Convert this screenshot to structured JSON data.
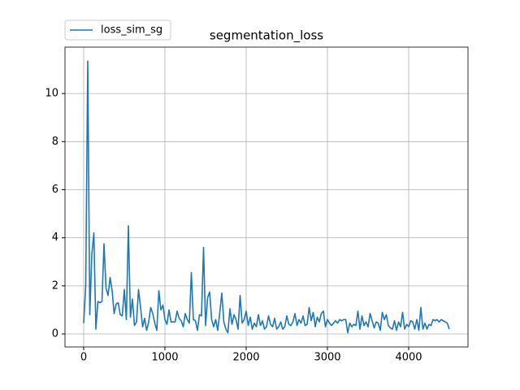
{
  "chart_data": {
    "type": "line",
    "title": "segmentation_loss",
    "x": [
      0,
      25,
      50,
      75,
      100,
      125,
      150,
      175,
      200,
      225,
      250,
      275,
      300,
      325,
      350,
      375,
      400,
      425,
      450,
      475,
      500,
      525,
      550,
      575,
      600,
      625,
      650,
      675,
      700,
      725,
      750,
      775,
      800,
      825,
      850,
      875,
      900,
      925,
      950,
      975,
      1000,
      1025,
      1050,
      1075,
      1100,
      1125,
      1150,
      1175,
      1200,
      1225,
      1250,
      1275,
      1300,
      1325,
      1350,
      1375,
      1400,
      1425,
      1450,
      1475,
      1500,
      1525,
      1550,
      1575,
      1600,
      1625,
      1650,
      1675,
      1700,
      1725,
      1750,
      1775,
      1800,
      1825,
      1850,
      1875,
      1900,
      1925,
      1950,
      1975,
      2000,
      2025,
      2050,
      2075,
      2100,
      2125,
      2150,
      2175,
      2200,
      2225,
      2250,
      2275,
      2300,
      2325,
      2350,
      2375,
      2400,
      2425,
      2450,
      2475,
      2500,
      2525,
      2550,
      2575,
      2600,
      2625,
      2650,
      2675,
      2700,
      2725,
      2750,
      2775,
      2800,
      2825,
      2850,
      2875,
      2900,
      2925,
      2950,
      2975,
      3000,
      3025,
      3050,
      3075,
      3100,
      3125,
      3150,
      3175,
      3200,
      3225,
      3250,
      3275,
      3300,
      3325,
      3350,
      3375,
      3400,
      3425,
      3450,
      3475,
      3500,
      3525,
      3550,
      3575,
      3600,
      3625,
      3650,
      3675,
      3700,
      3725,
      3750,
      3775,
      3800,
      3825,
      3850,
      3875,
      3900,
      3925,
      3950,
      3975,
      4000,
      4025,
      4050,
      4075,
      4100,
      4125,
      4150,
      4175,
      4200,
      4225,
      4250,
      4275,
      4300,
      4325,
      4350,
      4375,
      4400,
      4425,
      4450,
      4475,
      4500
    ],
    "series": [
      {
        "name": "loss_sim_sg",
        "color": "#1f77b4",
        "values": [
          0.45,
          2.0,
          11.35,
          0.8,
          3.3,
          4.2,
          0.2,
          1.35,
          1.3,
          1.35,
          3.75,
          1.9,
          1.6,
          2.35,
          1.8,
          0.85,
          1.25,
          1.3,
          0.8,
          0.75,
          1.85,
          0.6,
          4.5,
          0.7,
          1.45,
          0.35,
          0.5,
          1.85,
          1.1,
          0.3,
          0.65,
          0.15,
          0.5,
          1.1,
          0.85,
          0.45,
          0.15,
          1.8,
          1.0,
          1.2,
          0.6,
          0.4,
          1.0,
          0.5,
          0.5,
          0.5,
          0.95,
          0.65,
          0.55,
          0.3,
          0.85,
          0.6,
          0.45,
          2.55,
          0.6,
          0.55,
          0.15,
          0.8,
          0.75,
          3.6,
          0.35,
          1.5,
          1.75,
          0.6,
          0.3,
          0.6,
          0.15,
          0.9,
          1.7,
          0.5,
          0.2,
          0.05,
          1.05,
          0.4,
          0.8,
          0.6,
          0.2,
          1.6,
          0.45,
          0.6,
          0.95,
          0.35,
          0.7,
          0.2,
          0.45,
          0.3,
          0.8,
          0.35,
          0.55,
          0.2,
          0.3,
          0.75,
          0.4,
          0.3,
          0.65,
          0.2,
          0.3,
          0.5,
          0.2,
          0.3,
          0.75,
          0.4,
          0.35,
          0.5,
          0.85,
          0.35,
          0.6,
          0.45,
          0.75,
          0.35,
          0.4,
          1.1,
          0.55,
          0.9,
          0.3,
          0.7,
          0.5,
          0.85,
          0.95,
          0.3,
          0.6,
          0.45,
          0.35,
          0.45,
          0.55,
          0.45,
          0.6,
          0.55,
          0.6,
          0.6,
          0.05,
          0.45,
          0.3,
          0.4,
          0.35,
          0.95,
          0.2,
          0.75,
          0.35,
          0.5,
          0.3,
          0.85,
          0.55,
          0.25,
          0.5,
          0.45,
          0.15,
          0.9,
          0.6,
          0.8,
          0.35,
          0.25,
          0.2,
          0.55,
          0.15,
          0.5,
          0.3,
          0.9,
          0.2,
          0.4,
          0.3,
          0.55,
          0.5,
          0.2,
          0.6,
          0.15,
          1.1,
          0.2,
          0.45,
          0.2,
          0.4,
          0.35,
          0.6,
          0.55,
          0.6,
          0.5,
          0.6,
          0.55,
          0.5,
          0.45,
          0.2
        ]
      }
    ],
    "xlim": [
      -230,
      4730
    ],
    "ylim": [
      -0.54,
      11.93
    ],
    "xticks": [
      0,
      1000,
      2000,
      3000,
      4000
    ],
    "yticks": [
      0,
      2,
      4,
      6,
      8,
      10
    ],
    "grid": true,
    "legend": "upper left"
  }
}
